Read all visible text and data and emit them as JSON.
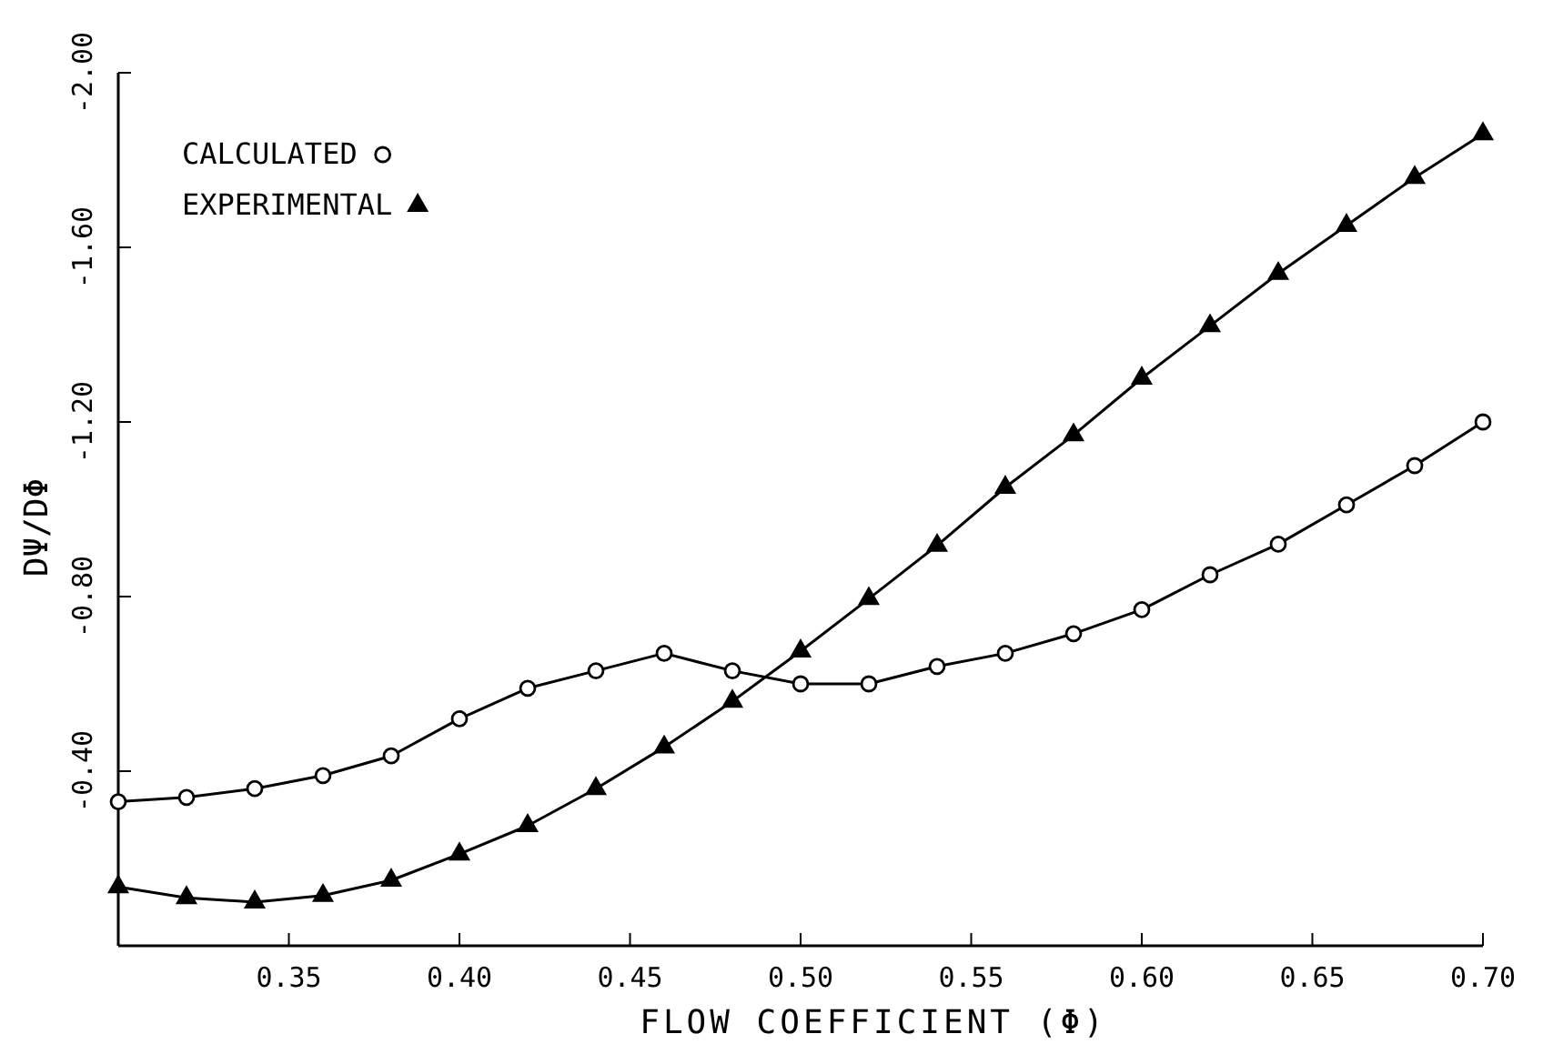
{
  "chart_data": {
    "type": "line",
    "xlabel": "FLOW COEFFICIENT (Φ)",
    "ylabel": "DΨ/DΦ",
    "x": [
      0.3,
      0.32,
      0.34,
      0.36,
      0.38,
      0.4,
      0.42,
      0.44,
      0.46,
      0.48,
      0.5,
      0.52,
      0.54,
      0.56,
      0.58,
      0.6,
      0.62,
      0.64,
      0.66,
      0.68,
      0.7
    ],
    "series": [
      {
        "name": "CALCULATED",
        "color": "#000000",
        "marker": "circle",
        "values": [
          -0.33,
          -0.34,
          -0.36,
          -0.39,
          -0.435,
          -0.52,
          -0.59,
          -0.63,
          -0.67,
          -0.63,
          -0.6,
          -0.6,
          -0.64,
          -0.67,
          -0.715,
          -0.77,
          -0.85,
          -0.92,
          -1.01,
          -1.1,
          -1.2
        ]
      },
      {
        "name": "EXPERIMENTAL",
        "color": "#000000",
        "marker": "triangle",
        "values": [
          -0.135,
          -0.11,
          -0.1,
          -0.115,
          -0.15,
          -0.21,
          -0.275,
          -0.36,
          -0.455,
          -0.56,
          -0.675,
          -0.795,
          -0.917,
          -1.05,
          -1.17,
          -1.3,
          -1.42,
          -1.54,
          -1.65,
          -1.76,
          -1.86
        ]
      }
    ],
    "xlim": [
      0.3,
      0.7
    ],
    "xticks": [
      {
        "value": 0.35,
        "label": "0.35"
      },
      {
        "value": 0.4,
        "label": "0.40"
      },
      {
        "value": 0.45,
        "label": "0.45"
      },
      {
        "value": 0.5,
        "label": "0.50"
      },
      {
        "value": 0.55,
        "label": "0.55"
      },
      {
        "value": 0.6,
        "label": "0.60"
      },
      {
        "value": 0.65,
        "label": "0.65"
      },
      {
        "value": 0.7,
        "label": "0.70"
      }
    ],
    "ylim": [
      0,
      -2.0
    ],
    "yticks": [
      {
        "value": -0.4,
        "label": "-0.40"
      },
      {
        "value": -0.8,
        "label": "-0.80"
      },
      {
        "value": -1.2,
        "label": "-1.20"
      },
      {
        "value": -1.6,
        "label": "-1.60"
      },
      {
        "value": -2.0,
        "label": "-2.00"
      }
    ],
    "grid": false,
    "legend": "top left",
    "line_style": "solid"
  }
}
